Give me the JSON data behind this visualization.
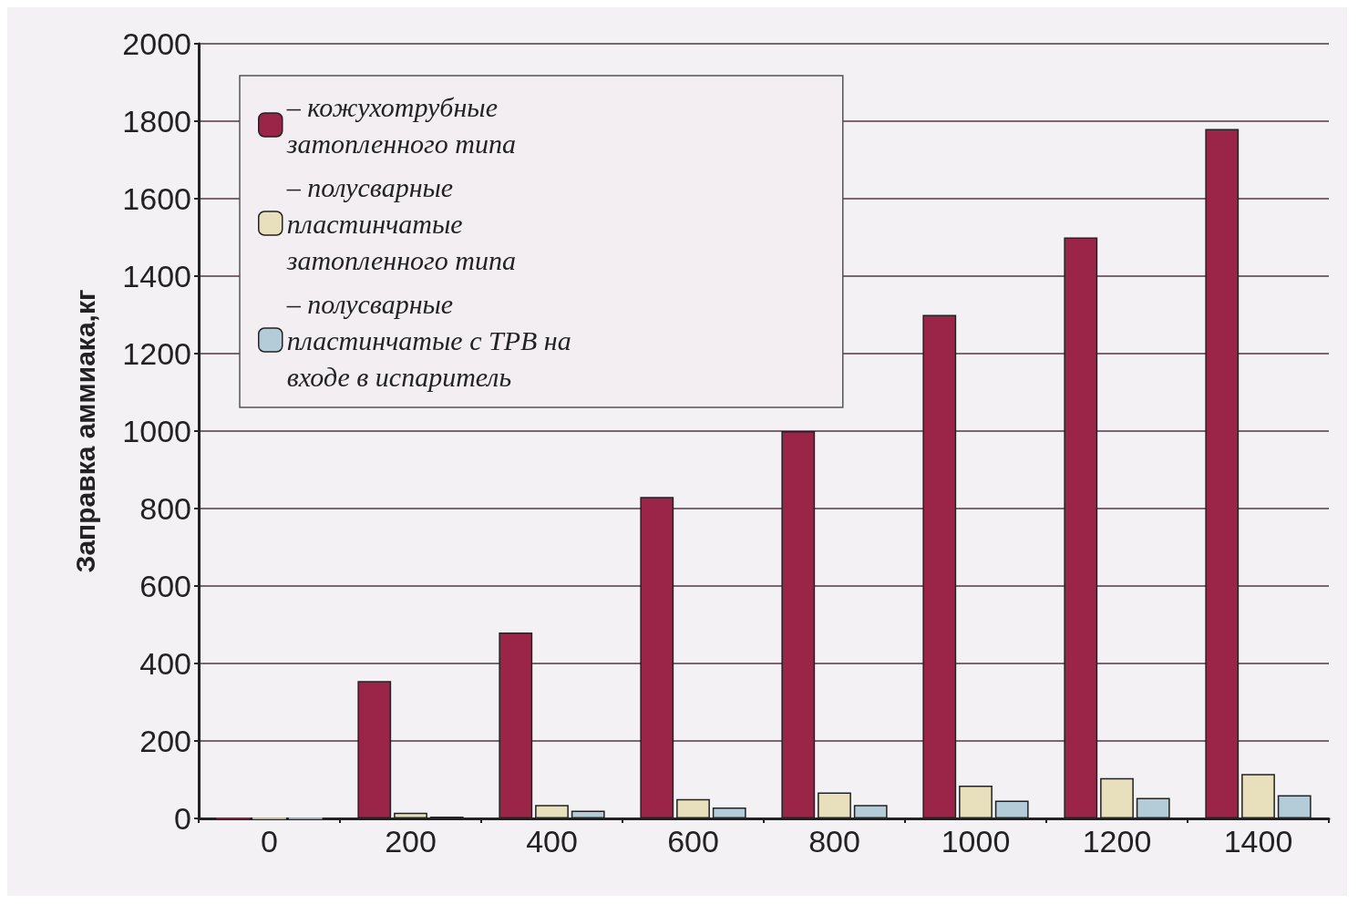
{
  "chart_data": {
    "type": "bar",
    "ylabel": "Заправка аммиака,кг",
    "categories": [
      "0",
      "200",
      "400",
      "600",
      "800",
      "1000",
      "1200",
      "1400"
    ],
    "series": [
      {
        "name": "– кожухотрубные затопленного типа",
        "color": "#9b2548",
        "values": [
          0,
          355,
          480,
          830,
          1000,
          1300,
          1500,
          1780
        ]
      },
      {
        "name": "– полусварные пластинчатые затопленного типа",
        "color": "#e8e0bc",
        "values": [
          0,
          15,
          35,
          50,
          67,
          85,
          104,
          115
        ]
      },
      {
        "name": "– полусварные пластинчатые с ТРВ на входе в испаритель",
        "color": "#b4ccd8",
        "values": [
          0,
          5,
          20,
          28,
          35,
          46,
          53,
          60
        ]
      }
    ],
    "ylim": [
      0,
      2000
    ],
    "yticks": [
      0,
      200,
      400,
      600,
      800,
      1000,
      1200,
      1400,
      1600,
      1800,
      2000
    ],
    "grid": "y",
    "legend": "top left"
  }
}
